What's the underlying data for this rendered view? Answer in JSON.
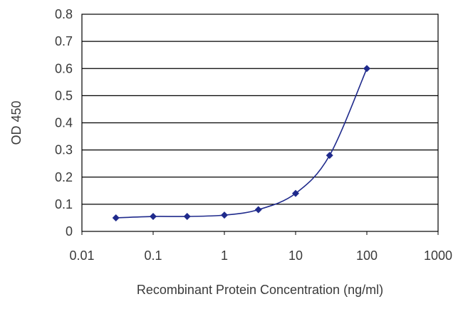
{
  "chart_data": {
    "type": "line",
    "title": "",
    "xlabel": "Recombinant Protein Concentration (ng/ml)",
    "ylabel": "OD 450",
    "xscale": "log",
    "xlim": [
      0.01,
      1000
    ],
    "ylim": [
      0,
      0.8
    ],
    "xticks": [
      0.01,
      0.1,
      1,
      10,
      100,
      1000
    ],
    "xtick_labels": [
      "0.01",
      "0.1",
      "1",
      "10",
      "100",
      "1000"
    ],
    "yticks": [
      0,
      0.1,
      0.2,
      0.3,
      0.4,
      0.5,
      0.6,
      0.7,
      0.8
    ],
    "ytick_labels": [
      "0",
      "0.1",
      "0.2",
      "0.3",
      "0.4",
      "0.5",
      "0.6",
      "0.7",
      "0.8"
    ],
    "grid": "horizontal",
    "legend": "none",
    "series": [
      {
        "x": [
          0.03,
          0.1,
          0.3,
          1,
          3,
          10,
          30,
          100
        ],
        "y": [
          0.05,
          0.055,
          0.055,
          0.06,
          0.08,
          0.14,
          0.28,
          0.6
        ]
      }
    ],
    "colors": {
      "series": "#1f2a8c",
      "grid": "#000000",
      "text": "#3a3a3a"
    }
  }
}
